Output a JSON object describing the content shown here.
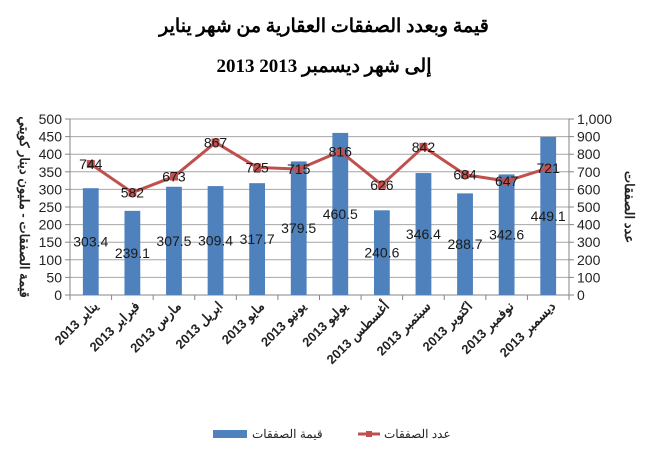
{
  "chart_data": {
    "type": "bar",
    "title_line1": "قيمة وبعدد الصفقات العقارية من شهر يناير",
    "title_line2": "2013 إلى شهر ديسمبر 2013",
    "ylabel": "قيمة الصفقات - مليون دينار كويتي",
    "y2label": "عدد الصفقات",
    "ylim": [
      0,
      500
    ],
    "y2lim": [
      0,
      1000
    ],
    "yticks": [
      "0",
      "50",
      "100",
      "150",
      "200",
      "250",
      "300",
      "350",
      "400",
      "450",
      "500"
    ],
    "y2ticks": [
      "0",
      "100",
      "200",
      "300",
      "400",
      "500",
      "600",
      "700",
      "800",
      "900",
      "1,000"
    ],
    "grid": true,
    "legend_position": "bottom",
    "categories": [
      "يناير 2013",
      "فبراير 2013",
      "مارس 2013",
      "ابريل 2013",
      "مايو 2013",
      "يونيو 2013",
      "يوليو 2013",
      "أغسطس 2013",
      "سبتمبر 2013",
      "اكتوبر 2013",
      "نوفمبر 2013",
      "ديسمبر 2013"
    ],
    "series": [
      {
        "name": "قيمة الصفقات",
        "type": "bar",
        "axis": "left",
        "color": "#4f81bd",
        "values": [
          303.4,
          239.1,
          307.5,
          309.4,
          317.7,
          379.5,
          460.5,
          240.6,
          346.4,
          288.7,
          342.6,
          449.1
        ],
        "labels": [
          "303.4",
          "239.1",
          "307.5",
          "309.4",
          "317.7",
          "379.5",
          "460.5",
          "240.6",
          "346.4",
          "288.7",
          "342.6",
          "449.1"
        ]
      },
      {
        "name": "عدد الصفقات",
        "type": "line",
        "axis": "right",
        "color": "#c0504d",
        "values": [
          744,
          582,
          673,
          867,
          725,
          715,
          816,
          626,
          842,
          684,
          647,
          721
        ],
        "labels": [
          "744",
          "582",
          "673",
          "867",
          "725",
          "715",
          "816",
          "626",
          "842",
          "684",
          "647",
          "721"
        ]
      }
    ]
  }
}
